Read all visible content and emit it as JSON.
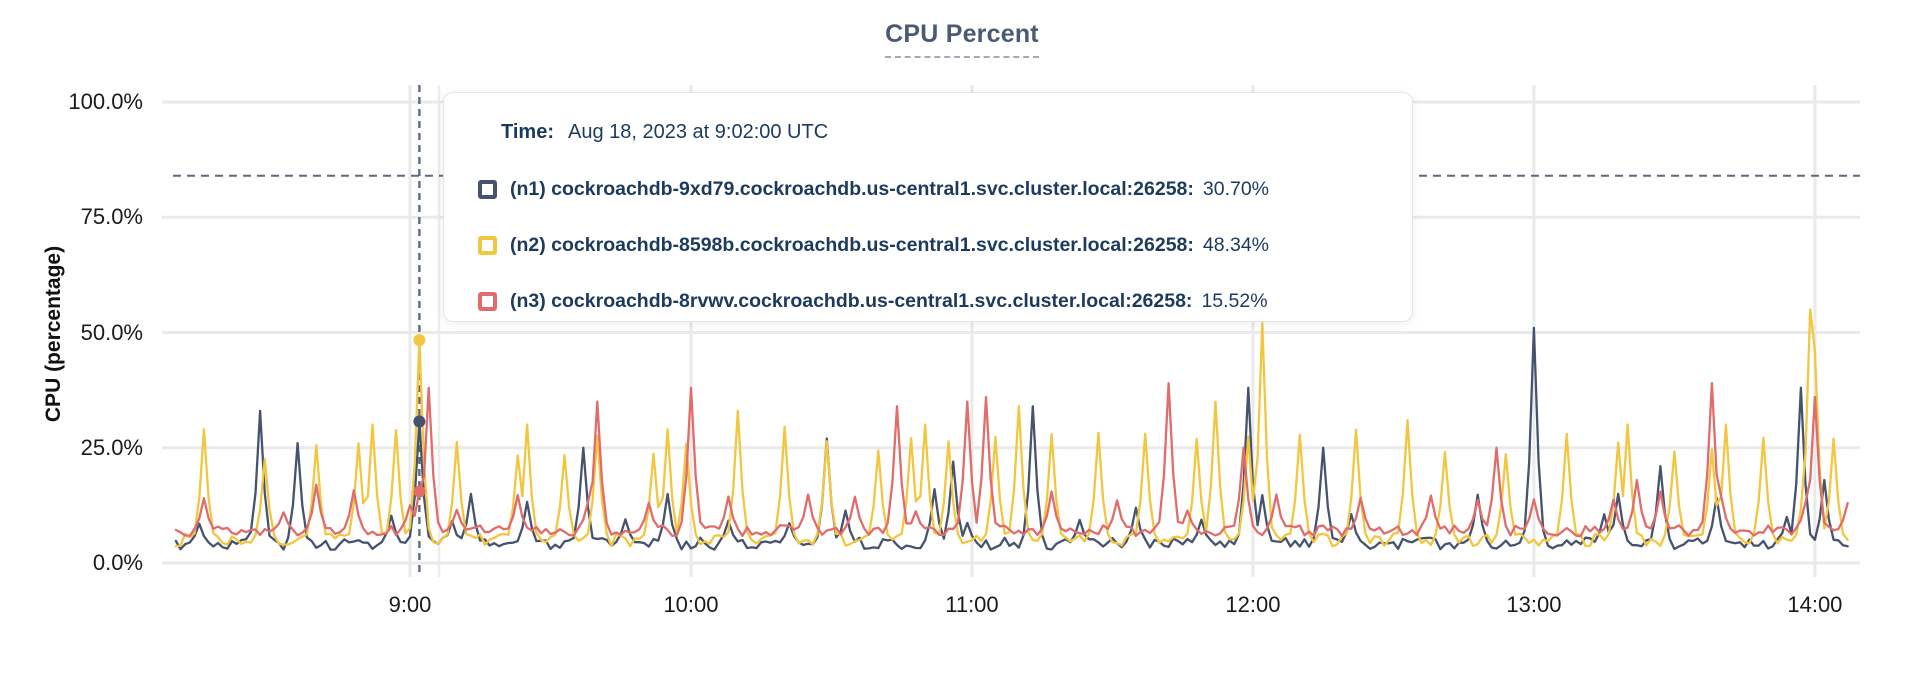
{
  "chart_data": {
    "type": "line",
    "title": "CPU Percent",
    "ylabel": "CPU (percentage)",
    "x_ticks": [
      "9:00",
      "10:00",
      "11:00",
      "12:00",
      "13:00",
      "14:00"
    ],
    "x_tick_minutes": [
      0,
      60,
      120,
      180,
      240,
      300
    ],
    "y_ticks": [
      "100.0%",
      "75.0%",
      "50.0%",
      "25.0%",
      "0.0%"
    ],
    "y_tick_values": [
      100,
      75,
      50,
      25,
      0
    ],
    "ylim": [
      0,
      100
    ],
    "x_range_minutes": [
      -50,
      307
    ],
    "grid": true,
    "legend_position": "hover-tooltip",
    "threshold_line_pct": 84,
    "hover": {
      "minute": 2,
      "time_label": "Time:",
      "time_value": "Aug 18, 2023 at 9:02:00 UTC"
    },
    "series": [
      {
        "id": "n1",
        "tooltip_label": "(n1) cockroachdb-9xd79.cockroachdb.us-central1.svc.cluster.local:26258:",
        "tooltip_value": "30.70%",
        "hover_value_pct": 30.7,
        "color": "#45536E",
        "seed": 3,
        "base": 4.2,
        "noise": 1.3,
        "auto_spikes": {
          "period": 21,
          "jitter": 9,
          "h_min": 8,
          "h_max": 16
        },
        "feature_spikes": [
          [
            -32,
            33
          ],
          [
            -24,
            26
          ],
          [
            2,
            30.7
          ],
          [
            13,
            15
          ],
          [
            37,
            25
          ],
          [
            55,
            15
          ],
          [
            89,
            27
          ],
          [
            112,
            16
          ],
          [
            116,
            22
          ],
          [
            133,
            34
          ],
          [
            155,
            12
          ],
          [
            179,
            38
          ],
          [
            195,
            25
          ],
          [
            240,
            51
          ],
          [
            258,
            15
          ],
          [
            267,
            21
          ],
          [
            297,
            38
          ],
          [
            302,
            18
          ]
        ]
      },
      {
        "id": "n2",
        "tooltip_label": "(n2) cockroachdb-8598b.cockroachdb.us-central1.svc.cluster.local:26258:",
        "tooltip_value": "48.34%",
        "hover_value_pct": 48.34,
        "color": "#F2C63F",
        "seed": 7,
        "base": 5.0,
        "noise": 1.4,
        "auto_spikes": {
          "period": 10,
          "jitter": 3,
          "h_min": 22,
          "h_max": 30
        },
        "feature_spikes": [
          [
            -44,
            29
          ],
          [
            -8,
            30
          ],
          [
            2,
            48.34
          ],
          [
            25,
            30
          ],
          [
            55,
            29
          ],
          [
            70,
            33
          ],
          [
            110,
            30
          ],
          [
            130,
            34
          ],
          [
            172,
            35
          ],
          [
            182,
            52
          ],
          [
            213,
            31
          ],
          [
            247,
            28
          ],
          [
            260,
            30
          ],
          [
            281,
            30
          ],
          [
            299,
            55
          ],
          [
            300,
            46
          ],
          [
            304,
            27
          ]
        ]
      },
      {
        "id": "n3",
        "tooltip_label": "(n3) cockroachdb-8rvwv.cockroachdb.us-central1.svc.cluster.local:26258:",
        "tooltip_value": "15.52%",
        "hover_value_pct": 15.52,
        "color": "#E06C6C",
        "seed": 13,
        "base": 7.0,
        "noise": 1.2,
        "auto_spikes": {
          "period": 14,
          "jitter": 5,
          "h_min": 11,
          "h_max": 16
        },
        "feature_spikes": [
          [
            -20,
            17
          ],
          [
            2,
            15.52
          ],
          [
            4,
            38
          ],
          [
            40,
            35
          ],
          [
            60,
            38
          ],
          [
            104,
            34
          ],
          [
            119,
            35
          ],
          [
            123,
            36
          ],
          [
            162,
            39
          ],
          [
            178,
            25
          ],
          [
            232,
            25
          ],
          [
            262,
            18
          ],
          [
            278,
            39
          ],
          [
            300,
            36
          ],
          [
            307,
            13
          ]
        ]
      }
    ],
    "colors": {
      "grid": "#EAEAEA",
      "hover_band_edge": "#EDEDED",
      "threshold": "#5B6C7E",
      "crosshair": "#5B6C7E",
      "title": "#4A5A74",
      "tooltip_text": "#1C3A5E",
      "axis_text": "#1A1A1A"
    }
  }
}
